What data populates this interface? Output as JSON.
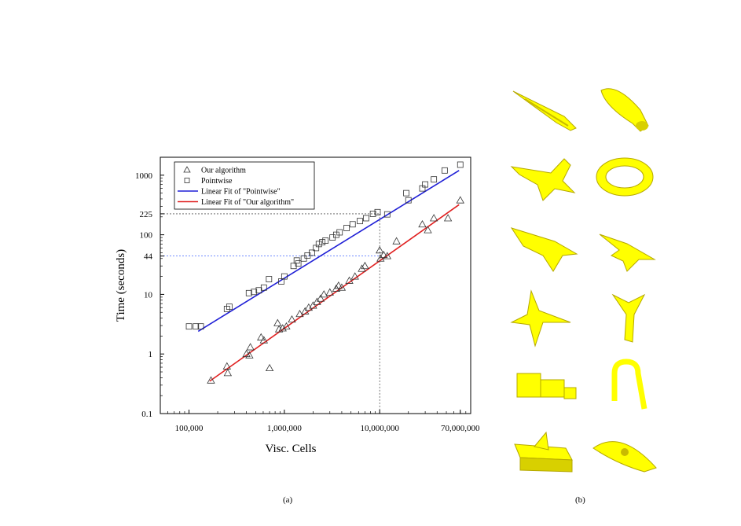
{
  "captions": {
    "left": "(a)",
    "right": "(b)"
  },
  "colors": {
    "fit_pointwise": "#1f1fd6",
    "fit_ours": "#e02020",
    "ref_line_dark": "#555555",
    "ref_line_blue": "#4466ff",
    "models": "#ffff00"
  },
  "chart_data": {
    "type": "scatter",
    "x_scale": "log",
    "y_scale": "log",
    "xlabel": "Visc. Cells",
    "ylabel": "Time (seconds)",
    "xlim": [
      50000,
      90000000
    ],
    "ylim": [
      0.1,
      2000
    ],
    "x_ticks": [
      100000,
      1000000,
      10000000,
      70000000
    ],
    "x_tick_labels": [
      "100,000",
      "1,000,000",
      "10,000,000",
      "70,000,000"
    ],
    "y_ticks": [
      0.1,
      1,
      10,
      44,
      100,
      225,
      1000
    ],
    "y_tick_labels": [
      "0.1",
      "1",
      "10",
      "44",
      "100",
      "225",
      "1000"
    ],
    "legend": {
      "placement": "top-left",
      "entries": [
        "Our algorithm",
        "Pointwise",
        "Linear Fit of \"Pointwise\"",
        "Linear Fit of \"Our algorithm\""
      ]
    },
    "reference_lines": [
      {
        "x": 10000000,
        "y": 225,
        "style": "dashed"
      },
      {
        "y": 44,
        "style": "dashed",
        "color": "blue"
      }
    ],
    "series": [
      {
        "name": "Our algorithm",
        "marker": "triangle",
        "x": [
          170000,
          250000,
          255000,
          400000,
          430000,
          440000,
          570000,
          610000,
          700000,
          850000,
          880000,
          960000,
          1050000,
          1200000,
          1450000,
          1650000,
          1800000,
          2000000,
          2200000,
          2400000,
          2600000,
          3000000,
          3500000,
          3700000,
          4000000,
          4800000,
          5500000,
          6500000,
          7000000,
          10000000,
          10200000,
          11000000,
          12000000,
          15000000,
          28000000,
          32000000,
          37000000,
          52000000,
          70000000
        ],
        "y": [
          0.36,
          0.62,
          0.48,
          1.0,
          0.95,
          1.3,
          1.9,
          1.7,
          0.58,
          3.3,
          2.6,
          2.7,
          2.9,
          3.8,
          4.7,
          5.2,
          6.0,
          6.5,
          7.5,
          8.5,
          10.0,
          10.8,
          12.5,
          14.0,
          13.0,
          17.0,
          20.0,
          27.0,
          30.0,
          55.0,
          40.0,
          46.0,
          44.0,
          78.0,
          150.0,
          120.0,
          190.0,
          190.0,
          380.0
        ]
      },
      {
        "name": "Pointwise",
        "marker": "square",
        "x": [
          100000,
          118000,
          133000,
          250000,
          265000,
          425000,
          480000,
          540000,
          610000,
          690000,
          930000,
          1000000,
          1250000,
          1350000,
          1400000,
          1600000,
          1750000,
          1950000,
          2150000,
          2300000,
          2500000,
          2700000,
          3200000,
          3500000,
          3800000,
          4500000,
          5200000,
          6200000,
          7200000,
          8500000,
          9500000,
          12000000,
          19000000,
          20000000,
          28000000,
          30000000,
          37000000,
          48000000,
          70000000
        ],
        "y": [
          2.9,
          2.9,
          2.9,
          5.7,
          6.2,
          10.5,
          11.0,
          11.7,
          13.0,
          18.0,
          16.5,
          20.0,
          30.0,
          37.0,
          33.0,
          40.0,
          45.0,
          50.0,
          60.0,
          70.0,
          75.0,
          80.0,
          90.0,
          100.0,
          110.0,
          130.0,
          150.0,
          170.0,
          190.0,
          225.0,
          240.0,
          220.0,
          500.0,
          380.0,
          600.0,
          700.0,
          850.0,
          1200.0,
          1500.0
        ]
      }
    ],
    "fits": [
      {
        "name": "Linear Fit of \"Pointwise\"",
        "x": [
          125000,
          68000000
        ],
        "y": [
          2.4,
          1200
        ]
      },
      {
        "name": "Linear Fit of \"Our algorithm\"",
        "x": [
          165000,
          68000000
        ],
        "y": [
          0.35,
          320
        ]
      }
    ]
  }
}
